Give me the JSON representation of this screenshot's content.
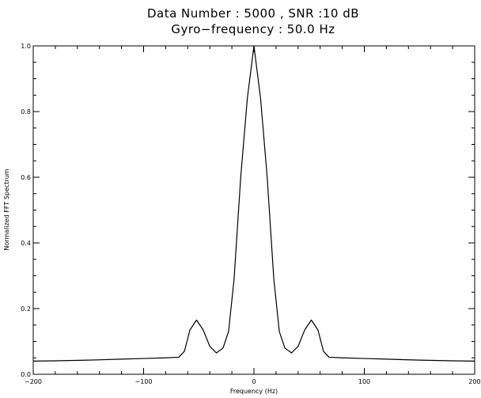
{
  "chart_data": {
    "type": "line",
    "title": "Data Number :  5000 ,  SNR :10 dB",
    "subtitle": "Gyro−frequency :  50.0 Hz",
    "xlabel": "Frequency (Hz)",
    "ylabel": "Normalized FFT Spectrum",
    "xlim": [
      -200,
      200
    ],
    "ylim": [
      0.0,
      1.0
    ],
    "grid": false,
    "x_ticks": [
      -200,
      -100,
      0,
      100,
      200
    ],
    "x_tick_labels": [
      "−200",
      "−100",
      "0",
      "100",
      "200"
    ],
    "y_ticks": [
      0.0,
      0.2,
      0.4,
      0.6,
      0.8,
      1.0
    ],
    "y_tick_labels": [
      "0.0",
      "0.2",
      "0.4",
      "0.6",
      "0.8",
      "1.0"
    ],
    "series": [
      {
        "x": [
          -200,
          -180,
          -150,
          -120,
          -100,
          -80,
          -68,
          -63,
          -58,
          -52,
          -46,
          -40,
          -34,
          -28,
          -23,
          -18,
          -12,
          -6,
          0,
          6,
          12,
          18,
          23,
          28,
          34,
          40,
          46,
          52,
          58,
          63,
          68,
          80,
          100,
          120,
          150,
          180,
          200
        ],
        "y": [
          0.04,
          0.041,
          0.043,
          0.046,
          0.048,
          0.05,
          0.052,
          0.07,
          0.135,
          0.165,
          0.135,
          0.085,
          0.065,
          0.08,
          0.13,
          0.29,
          0.6,
          0.84,
          1.0,
          0.84,
          0.6,
          0.29,
          0.13,
          0.08,
          0.065,
          0.085,
          0.135,
          0.165,
          0.135,
          0.07,
          0.052,
          0.05,
          0.048,
          0.046,
          0.043,
          0.041,
          0.04
        ]
      }
    ]
  }
}
